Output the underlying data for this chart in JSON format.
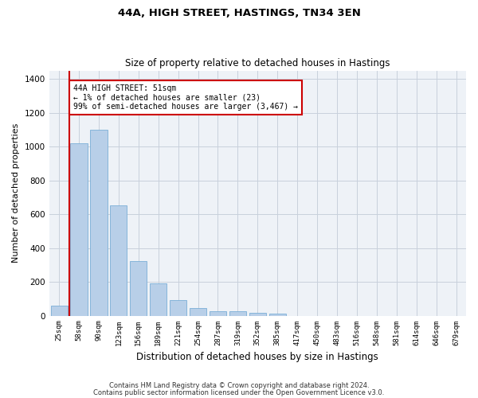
{
  "title": "44A, HIGH STREET, HASTINGS, TN34 3EN",
  "subtitle": "Size of property relative to detached houses in Hastings",
  "xlabel": "Distribution of detached houses by size in Hastings",
  "ylabel": "Number of detached properties",
  "categories": [
    "25sqm",
    "58sqm",
    "90sqm",
    "123sqm",
    "156sqm",
    "189sqm",
    "221sqm",
    "254sqm",
    "287sqm",
    "319sqm",
    "352sqm",
    "385sqm",
    "417sqm",
    "450sqm",
    "483sqm",
    "516sqm",
    "548sqm",
    "581sqm",
    "614sqm",
    "646sqm",
    "679sqm"
  ],
  "values": [
    58,
    1020,
    1100,
    650,
    325,
    190,
    90,
    45,
    27,
    24,
    18,
    10,
    0,
    0,
    0,
    0,
    0,
    0,
    0,
    0,
    0
  ],
  "bar_color": "#b8cfe8",
  "bar_edge_color": "#7aaed6",
  "highlight_line_color": "#cc0000",
  "annotation_line1": "44A HIGH STREET: 51sqm",
  "annotation_line2": "← 1% of detached houses are smaller (23)",
  "annotation_line3": "99% of semi-detached houses are larger (3,467) →",
  "annotation_box_color": "#ffffff",
  "annotation_box_edge_color": "#cc0000",
  "ylim": [
    0,
    1450
  ],
  "yticks": [
    0,
    200,
    400,
    600,
    800,
    1000,
    1200,
    1400
  ],
  "bg_color": "#eef2f7",
  "grid_color": "#c8d0dc",
  "footer_line1": "Contains HM Land Registry data © Crown copyright and database right 2024.",
  "footer_line2": "Contains public sector information licensed under the Open Government Licence v3.0."
}
